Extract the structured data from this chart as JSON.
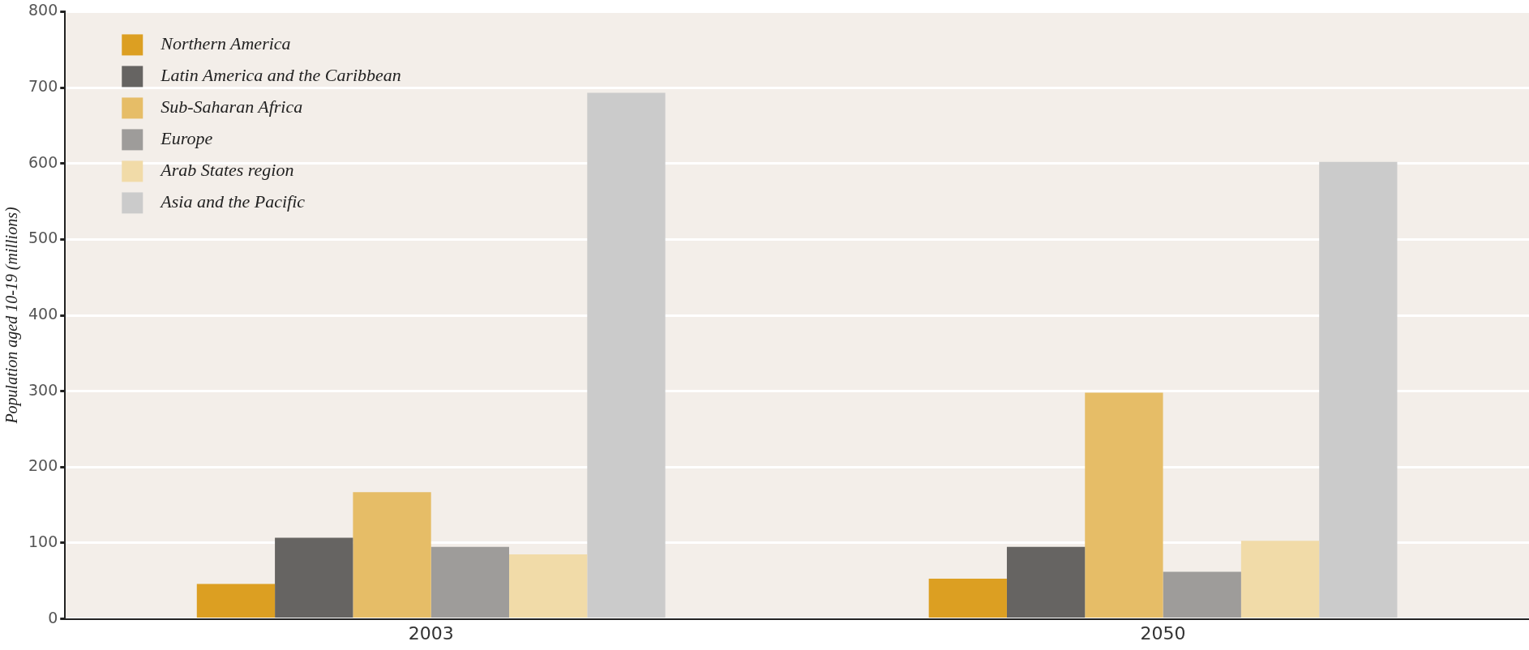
{
  "chart_data": {
    "type": "bar",
    "ylabel": "Population aged 10-19 (millions)",
    "categories": [
      "2003",
      "2050"
    ],
    "series": [
      {
        "name": "Northern America",
        "color": "#dc9f22",
        "values": [
          46,
          53
        ]
      },
      {
        "name": "Latin America and the Caribbean",
        "color": "#666462",
        "values": [
          107,
          95
        ]
      },
      {
        "name": "Sub-Saharan Africa",
        "color": "#e6bd67",
        "values": [
          167,
          298
        ]
      },
      {
        "name": "Europe",
        "color": "#9e9c9a",
        "values": [
          95,
          62
        ]
      },
      {
        "name": "Arab States region",
        "color": "#f1dba8",
        "values": [
          85,
          103
        ]
      },
      {
        "name": "Asia and the Pacific",
        "color": "#cbcbcb",
        "values": [
          693,
          602
        ]
      }
    ],
    "ylim": [
      0,
      800
    ],
    "yticks": [
      0,
      100,
      200,
      300,
      400,
      500,
      600,
      700,
      800
    ],
    "grid": "y",
    "legend": "top left"
  }
}
